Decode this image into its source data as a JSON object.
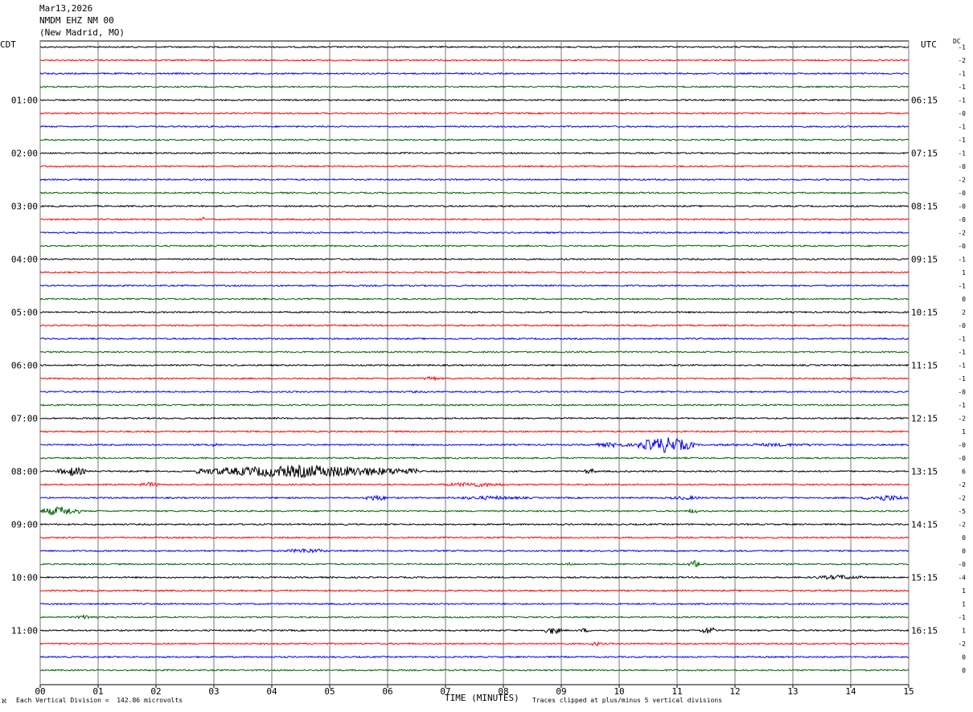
{
  "header": {
    "date": "Mar13,2026",
    "station": "NMDM EHZ NM 00",
    "location": "(New Madrid, MO)"
  },
  "left_tz": "CDT",
  "right_tz": "UTC",
  "dc_label": "DC",
  "footer": {
    "left_mark": "ℵ",
    "division": "Each Vertical Division =  142.86 microvolts",
    "xlabel": "TIME (MINUTES)",
    "clip_note": "Traces clipped at plus/minus 5 vertical divisions"
  },
  "chart_data": {
    "type": "line",
    "title": "NMDM EHZ NM 00 (New Madrid, MO) Mar13,2026",
    "xlabel": "TIME (MINUTES)",
    "ylabel": "",
    "xlim": [
      0,
      15
    ],
    "x_ticks": [
      "00",
      "01",
      "02",
      "03",
      "04",
      "05",
      "06",
      "07",
      "08",
      "09",
      "10",
      "11",
      "12",
      "13",
      "14",
      "15"
    ],
    "rows_per_hour": 4,
    "trace_colors": [
      "#000000",
      "#ff0000",
      "#0000ff",
      "#006400"
    ],
    "left_hour_labels": [
      "01:00",
      "02:00",
      "03:00",
      "04:00",
      "05:00",
      "06:00",
      "07:00",
      "08:00",
      "09:00",
      "10:00",
      "11:00"
    ],
    "right_hour_labels": [
      "06:15",
      "07:15",
      "08:15",
      "09:15",
      "10:15",
      "11:15",
      "12:15",
      "13:15",
      "14:15",
      "15:15",
      "16:15"
    ],
    "dc_offsets": [
      "-1",
      "-2",
      "-1",
      "-1",
      "-1",
      "-0",
      "-1",
      "-1",
      "-1",
      "-0",
      "-2",
      "-0",
      "-0",
      "-0",
      "-2",
      "-0",
      "-1",
      "1",
      "-1",
      "0",
      "2",
      "-0",
      "-1",
      "-1",
      "-1",
      "-1",
      "-0",
      "-1",
      "-2",
      "1",
      "-0",
      "-0",
      "6",
      "-2",
      "-2",
      "-5",
      "-2",
      "0",
      "0",
      "-0",
      "-4",
      "1",
      "1",
      "-1",
      "1",
      "-2",
      "0",
      "0"
    ],
    "events": [
      {
        "row": 13,
        "start_min": 2.8,
        "end_min": 2.84,
        "amp": 4
      },
      {
        "row": 25,
        "start_min": 6.6,
        "end_min": 6.9,
        "amp": 3
      },
      {
        "row": 25,
        "start_min": 13.9,
        "end_min": 14.1,
        "amp": 2
      },
      {
        "row": 26,
        "start_min": 6.3,
        "end_min": 6.6,
        "amp": 1.5
      },
      {
        "row": 30,
        "start_min": 2.8,
        "end_min": 3.2,
        "amp": 2
      },
      {
        "row": 30,
        "start_min": 9.5,
        "end_min": 10.3,
        "amp": 3
      },
      {
        "row": 30,
        "start_min": 10.3,
        "end_min": 11.3,
        "amp": 10
      },
      {
        "row": 30,
        "start_min": 11.3,
        "end_min": 14.0,
        "amp": 2
      },
      {
        "row": 32,
        "start_min": 0.3,
        "end_min": 0.8,
        "amp": 6
      },
      {
        "row": 32,
        "start_min": 2.7,
        "end_min": 6.5,
        "amp": 8
      },
      {
        "row": 32,
        "start_min": 9.4,
        "end_min": 9.6,
        "amp": 4
      },
      {
        "row": 33,
        "start_min": 1.7,
        "end_min": 2.1,
        "amp": 3
      },
      {
        "row": 33,
        "start_min": 6.9,
        "end_min": 8.1,
        "amp": 3
      },
      {
        "row": 34,
        "start_min": 5.6,
        "end_min": 6.0,
        "amp": 4
      },
      {
        "row": 34,
        "start_min": 7.0,
        "end_min": 8.5,
        "amp": 2.5
      },
      {
        "row": 34,
        "start_min": 10.8,
        "end_min": 11.5,
        "amp": 2.5
      },
      {
        "row": 34,
        "start_min": 14.2,
        "end_min": 15.0,
        "amp": 4
      },
      {
        "row": 35,
        "start_min": 0.0,
        "end_min": 0.7,
        "amp": 6
      },
      {
        "row": 35,
        "start_min": 11.2,
        "end_min": 11.35,
        "amp": 4
      },
      {
        "row": 38,
        "start_min": 4.2,
        "end_min": 5.0,
        "amp": 3
      },
      {
        "row": 39,
        "start_min": 11.2,
        "end_min": 11.4,
        "amp": 5
      },
      {
        "row": 39,
        "start_min": 9.0,
        "end_min": 9.3,
        "amp": 2
      },
      {
        "row": 40,
        "start_min": 13.3,
        "end_min": 14.3,
        "amp": 3
      },
      {
        "row": 43,
        "start_min": 0.6,
        "end_min": 1.0,
        "amp": 3
      },
      {
        "row": 44,
        "start_min": 8.7,
        "end_min": 9.0,
        "amp": 5
      },
      {
        "row": 44,
        "start_min": 9.3,
        "end_min": 9.5,
        "amp": 3
      },
      {
        "row": 44,
        "start_min": 11.4,
        "end_min": 11.7,
        "amp": 5
      },
      {
        "row": 45,
        "start_min": 9.5,
        "end_min": 9.7,
        "amp": 3
      }
    ]
  }
}
